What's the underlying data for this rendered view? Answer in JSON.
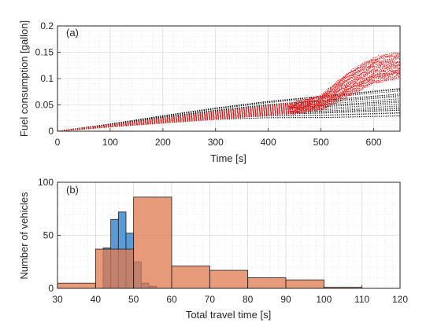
{
  "chart_data": [
    {
      "type": "line",
      "panel_label": "(a)",
      "xlabel": "Time [s]",
      "ylabel": "Fuel consumption [gallon]",
      "xlim": [
        0,
        650
      ],
      "ylim": [
        0,
        0.2
      ],
      "xticks": [
        0,
        100,
        200,
        300,
        400,
        500,
        600
      ],
      "yticks": [
        0,
        0.05,
        0.1,
        0.15,
        0.2
      ],
      "ytick_labels": [
        "0",
        "0.05",
        "0.1",
        "0.15",
        "0.2"
      ],
      "grid": true,
      "minor_grid": true,
      "series": [
        {
          "color": "#000000",
          "style": "dotted",
          "count": 22,
          "x": [
            0,
            100,
            200,
            300,
            400,
            500,
            600,
            650
          ],
          "y_low": [
            0,
            0.008,
            0.016,
            0.022,
            0.025,
            0.025,
            0.027,
            0.028
          ],
          "y_high": [
            0,
            0.014,
            0.03,
            0.045,
            0.058,
            0.068,
            0.078,
            0.083
          ]
        },
        {
          "color": "#e8191a",
          "style": "dotted",
          "count": 38,
          "x": [
            0,
            100,
            200,
            300,
            400,
            450,
            500,
            550,
            600,
            650
          ],
          "y_low": [
            0,
            0.008,
            0.015,
            0.022,
            0.03,
            0.034,
            0.04,
            0.065,
            0.09,
            0.1
          ],
          "y_high": [
            0,
            0.012,
            0.025,
            0.037,
            0.048,
            0.055,
            0.068,
            0.11,
            0.14,
            0.15
          ]
        }
      ]
    },
    {
      "type": "bar",
      "panel_label": "(b)",
      "xlabel": "Total travel time [s]",
      "ylabel": "Number of vehicles",
      "xlim": [
        30,
        120
      ],
      "ylim": [
        0,
        100
      ],
      "xticks": [
        30,
        40,
        50,
        60,
        70,
        80,
        90,
        100,
        110,
        120
      ],
      "yticks": [
        0,
        50,
        100
      ],
      "grid": true,
      "minor_grid": true,
      "series": [
        {
          "color": "#5b9bd5",
          "bins": [
            {
              "x0": 40,
              "x1": 42,
              "value": 0
            },
            {
              "x0": 42,
              "x1": 44,
              "value": 38
            },
            {
              "x0": 44,
              "x1": 46,
              "value": 65
            },
            {
              "x0": 46,
              "x1": 48,
              "value": 72
            },
            {
              "x0": 48,
              "x1": 50,
              "value": 52
            },
            {
              "x0": 50,
              "x1": 52,
              "value": 25
            },
            {
              "x0": 52,
              "x1": 54,
              "value": 5
            },
            {
              "x0": 54,
              "x1": 56,
              "value": 2
            }
          ]
        },
        {
          "color": "#e07a4e",
          "bins": [
            {
              "x0": 30,
              "x1": 40,
              "value": 5
            },
            {
              "x0": 40,
              "x1": 50,
              "value": 37
            },
            {
              "x0": 50,
              "x1": 60,
              "value": 86
            },
            {
              "x0": 60,
              "x1": 70,
              "value": 21
            },
            {
              "x0": 70,
              "x1": 80,
              "value": 17
            },
            {
              "x0": 80,
              "x1": 90,
              "value": 10
            },
            {
              "x0": 90,
              "x1": 100,
              "value": 8
            },
            {
              "x0": 100,
              "x1": 110,
              "value": 1
            }
          ]
        }
      ]
    }
  ]
}
